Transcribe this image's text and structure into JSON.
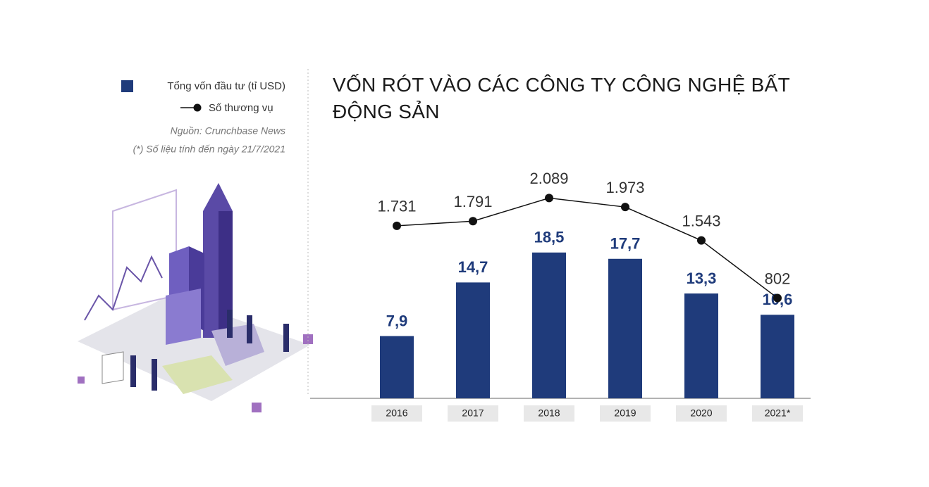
{
  "chart_data": {
    "type": "bar",
    "title": "VỐN RÓT VÀO CÁC CÔNG TY CÔNG NGHỆ BẤT ĐỘNG SẢN",
    "source": "Nguồn: Crunchbase News",
    "note": "(*) Số liệu tính đến ngày 21/7/2021",
    "categories": [
      "2016",
      "2017",
      "2018",
      "2019",
      "2020",
      "2021*"
    ],
    "series": [
      {
        "name": "Tổng vốn đầu tư (tỉ USD)",
        "type": "bar",
        "color": "#1f3b7b",
        "values": [
          7.9,
          14.7,
          18.5,
          17.7,
          13.3,
          10.6
        ],
        "value_labels": [
          "7,9",
          "14,7",
          "18,5",
          "17,7",
          "13,3",
          "10,6"
        ]
      },
      {
        "name": "Số thương vụ",
        "type": "line",
        "axis": "y2",
        "color": "#111111",
        "values": [
          1731,
          1791,
          2089,
          1973,
          1543,
          802
        ],
        "value_labels": [
          "1.731",
          "1.791",
          "2.089",
          "1.973",
          "1.543",
          "802"
        ]
      }
    ],
    "ylim": [
      0,
      20
    ],
    "y2lim": [
      0,
      2500
    ]
  }
}
